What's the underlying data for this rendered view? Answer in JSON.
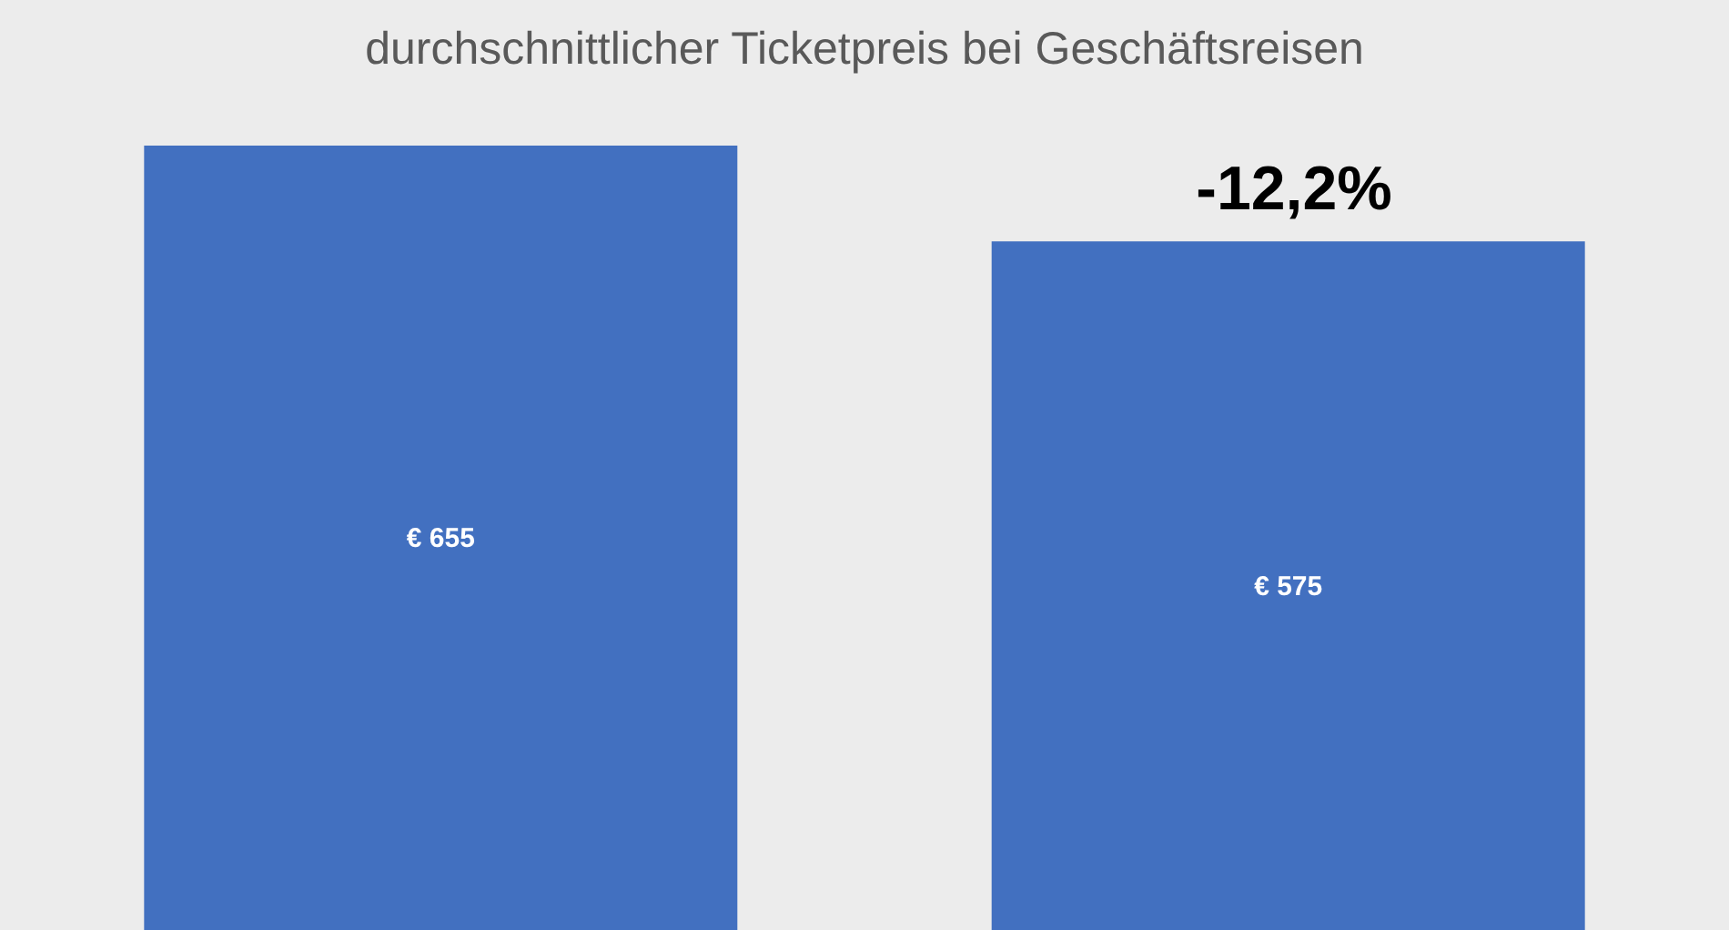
{
  "chart_data": {
    "type": "bar",
    "title": "durchschnittlicher Ticketpreis bei Geschäftsreisen",
    "categories": [
      null,
      null
    ],
    "values": [
      655,
      575
    ],
    "value_labels": [
      "€ 655",
      "€ 575"
    ],
    "color": "#4270c0",
    "tick_labels": false,
    "annotations": [
      "-12,2%"
    ]
  }
}
